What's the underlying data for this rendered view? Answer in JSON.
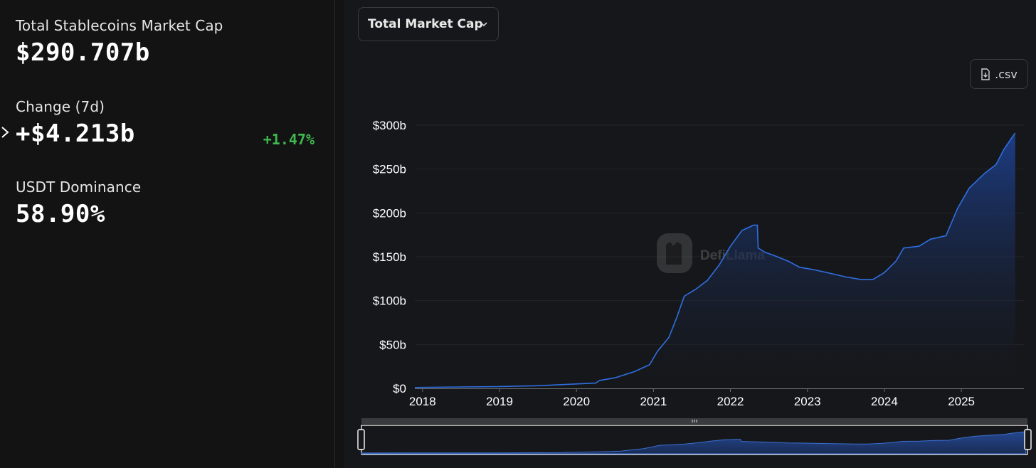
{
  "stats": {
    "total_label": "Total Stablecoins Market Cap",
    "total_value": "$290.707b",
    "change_label": "Change (7d)",
    "change_value": "+$4.213b",
    "change_pct": "+1.47%",
    "dominance_label": "USDT Dominance",
    "dominance_value": "58.90%"
  },
  "controls": {
    "metric_select": "Total Market Cap",
    "csv_label": ".csv"
  },
  "watermark": "DefiLlama",
  "colors": {
    "accent_line": "#2f6fe0",
    "area_fill": "#1d3a7a",
    "positive": "#3fb950"
  },
  "chart_data": {
    "type": "area",
    "title": "",
    "xlabel": "",
    "ylabel": "",
    "x_ticks": [
      "2018",
      "2019",
      "2020",
      "2021",
      "2022",
      "2023",
      "2024",
      "2025"
    ],
    "y_ticks": [
      "$0",
      "$50b",
      "$100b",
      "$150b",
      "$200b",
      "$250b",
      "$300b"
    ],
    "xlim": [
      2017.9,
      2025.72
    ],
    "ylim": [
      0,
      300
    ],
    "grid": true,
    "series": [
      {
        "values": [
          [
            2017.9,
            1
          ],
          [
            2018.5,
            1.5
          ],
          [
            2019.0,
            2
          ],
          [
            2019.5,
            3
          ],
          [
            2020.0,
            5
          ],
          [
            2020.25,
            6
          ],
          [
            2020.3,
            9
          ],
          [
            2020.5,
            12
          ],
          [
            2020.75,
            19
          ],
          [
            2020.95,
            27
          ],
          [
            2021.05,
            42
          ],
          [
            2021.2,
            58
          ],
          [
            2021.3,
            80
          ],
          [
            2021.4,
            105
          ],
          [
            2021.55,
            113
          ],
          [
            2021.7,
            123
          ],
          [
            2021.85,
            140
          ],
          [
            2022.0,
            162
          ],
          [
            2022.15,
            180
          ],
          [
            2022.3,
            186
          ],
          [
            2022.35,
            186
          ],
          [
            2022.36,
            160
          ],
          [
            2022.45,
            155
          ],
          [
            2022.55,
            152
          ],
          [
            2022.75,
            145
          ],
          [
            2022.9,
            138
          ],
          [
            2023.1,
            135
          ],
          [
            2023.3,
            131
          ],
          [
            2023.5,
            127
          ],
          [
            2023.7,
            124
          ],
          [
            2023.85,
            124
          ],
          [
            2024.0,
            132
          ],
          [
            2024.15,
            145
          ],
          [
            2024.25,
            160
          ],
          [
            2024.45,
            162
          ],
          [
            2024.6,
            170
          ],
          [
            2024.8,
            174
          ],
          [
            2024.95,
            205
          ],
          [
            2025.1,
            228
          ],
          [
            2025.3,
            245
          ],
          [
            2025.45,
            255
          ],
          [
            2025.55,
            272
          ],
          [
            2025.65,
            285
          ],
          [
            2025.7,
            291
          ]
        ]
      }
    ]
  }
}
